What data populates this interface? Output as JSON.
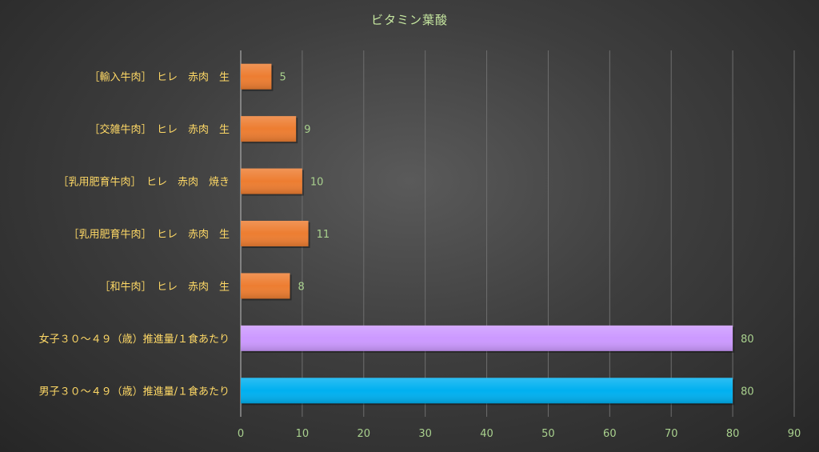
{
  "chart_data": {
    "type": "bar",
    "orientation": "horizontal",
    "title": "ビタミン葉酸",
    "categories": [
      "［輸入牛肉］　ヒレ　赤肉　生",
      "［交雑牛肉］　ヒレ　赤肉　生",
      "［乳用肥育牛肉］　ヒレ　赤肉　焼き",
      "［乳用肥育牛肉］　ヒレ　赤肉　生",
      "［和牛肉］　ヒレ　赤肉　生",
      "女子３０～４９（歳）推進量/１食あたり",
      "男子３０～４９（歳）推進量/１食あたり"
    ],
    "values": [
      5,
      9,
      10,
      11,
      8,
      80,
      80
    ],
    "data_labels": [
      "5",
      "9",
      "10",
      "11",
      "8",
      "80",
      "80"
    ],
    "bar_colors": [
      "#ed7d31",
      "#ed7d31",
      "#ed7d31",
      "#ed7d31",
      "#ed7d31",
      "#cc99ff",
      "#00b0f0"
    ],
    "xlim": [
      0,
      90
    ],
    "xticks": [
      0,
      10,
      20,
      30,
      40,
      50,
      60,
      70,
      80,
      90
    ],
    "xlabel": "",
    "ylabel": "",
    "grid": true,
    "legend": "none",
    "colors": {
      "title": "#c6e7a0",
      "category_label": "#ffd966",
      "tick_label": "#a9d18e",
      "data_label": "#a9d18e",
      "gridline": "#6e6e6e",
      "axis": "#bfbfbf"
    }
  }
}
